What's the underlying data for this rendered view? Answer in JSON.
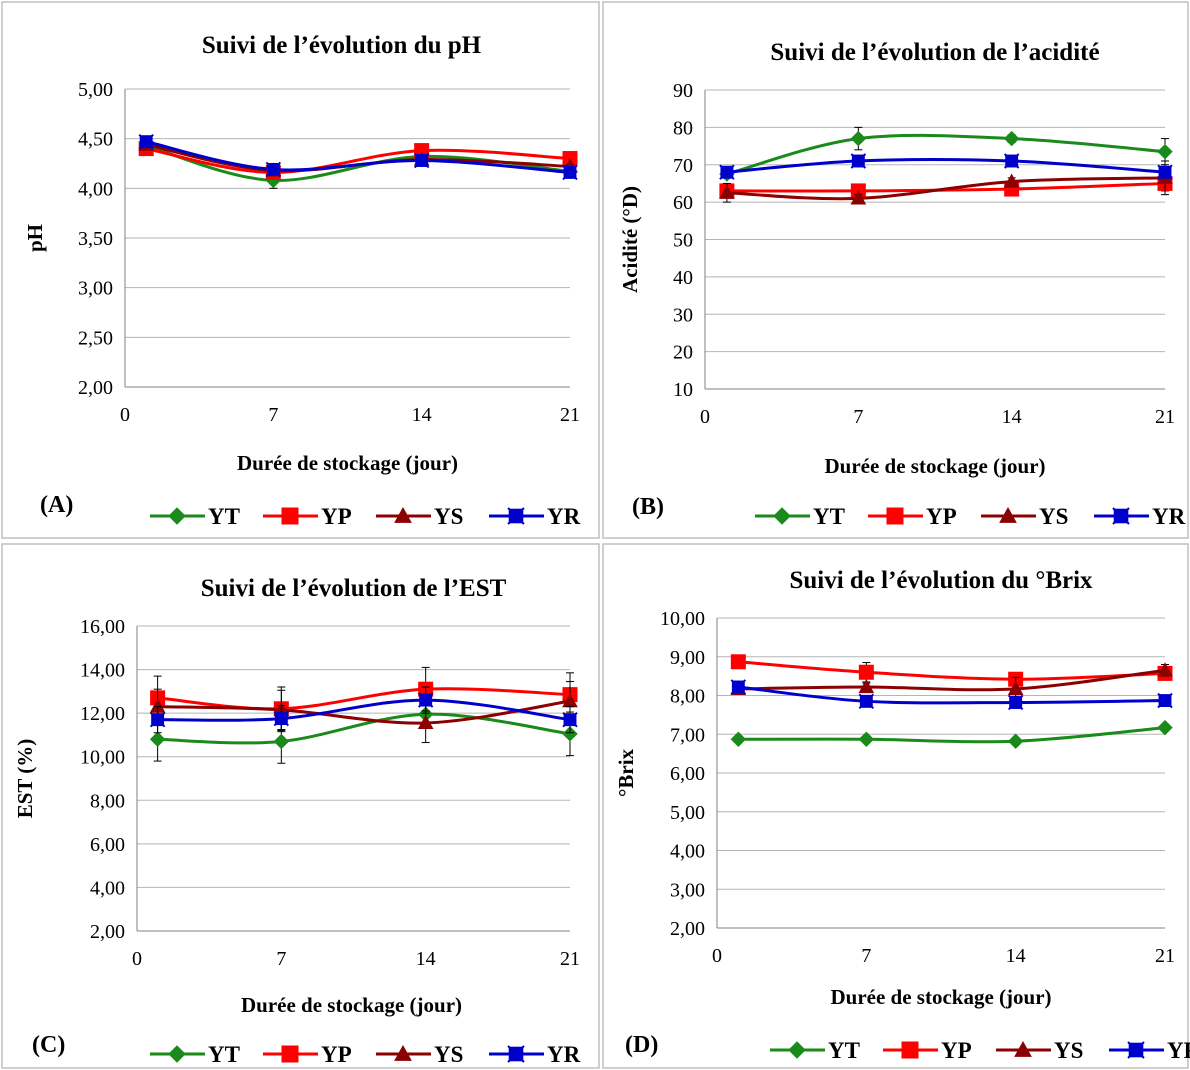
{
  "chart_data": [
    {
      "type": "line",
      "panel_label": "(A)",
      "title": "Suivi de l’évolution du pH",
      "xlabel": "Durée de stockage (jour)",
      "ylabel": "pH",
      "x_ticks": [
        "0",
        "7",
        "14",
        "21"
      ],
      "xlim": [
        0,
        21
      ],
      "y_ticks": [
        "2,00",
        "2,50",
        "3,00",
        "3,50",
        "4,00",
        "4,50",
        "5,00"
      ],
      "ylim": [
        2,
        5
      ],
      "x": [
        1,
        7,
        14,
        21
      ],
      "grid": true,
      "legend": "bottom",
      "series": [
        {
          "name": "YT",
          "color": "#1a8a1a",
          "marker": "diamond",
          "values": [
            4.43,
            4.08,
            4.32,
            4.17
          ],
          "errors": [
            0.02,
            0.08,
            0.02,
            0.02
          ]
        },
        {
          "name": "YP",
          "color": "#ff0000",
          "marker": "square",
          "values": [
            4.4,
            4.16,
            4.38,
            4.3
          ],
          "errors": [
            0.02,
            0.02,
            0.02,
            0.02
          ]
        },
        {
          "name": "YS",
          "color": "#8b0000",
          "marker": "triangle",
          "values": [
            4.44,
            4.18,
            4.29,
            4.22
          ],
          "errors": [
            0.02,
            0.02,
            0.02,
            0.02
          ]
        },
        {
          "name": "YR",
          "color": "#0000cc",
          "marker": "cross-square",
          "values": [
            4.47,
            4.19,
            4.28,
            4.16
          ],
          "errors": [
            0.02,
            0.02,
            0.02,
            0.02
          ]
        }
      ]
    },
    {
      "type": "line",
      "panel_label": "(B)",
      "title": "Suivi de l’évolution de l’acidité",
      "xlabel": "Durée de stockage (jour)",
      "ylabel": "Acidité (°D)",
      "x_ticks": [
        "0",
        "7",
        "14",
        "21"
      ],
      "xlim": [
        0,
        21
      ],
      "y_ticks": [
        "10",
        "20",
        "30",
        "40",
        "50",
        "60",
        "70",
        "80",
        "90"
      ],
      "ylim": [
        10,
        90
      ],
      "x": [
        1,
        7,
        14,
        21
      ],
      "grid": true,
      "legend": "bottom",
      "series": [
        {
          "name": "YT",
          "color": "#1a8a1a",
          "marker": "diamond",
          "values": [
            67.5,
            77,
            77,
            73.5
          ],
          "errors": [
            0.5,
            3,
            1,
            3.5
          ]
        },
        {
          "name": "YP",
          "color": "#ff0000",
          "marker": "square",
          "values": [
            63,
            63,
            63.5,
            65
          ],
          "errors": [
            1,
            1,
            1,
            2
          ]
        },
        {
          "name": "YS",
          "color": "#8b0000",
          "marker": "triangle",
          "values": [
            62.5,
            61,
            65.5,
            66.5
          ],
          "errors": [
            2.5,
            1,
            1,
            4.5
          ]
        },
        {
          "name": "YR",
          "color": "#0000cc",
          "marker": "cross-square",
          "values": [
            68,
            71,
            71,
            68
          ],
          "errors": [
            0.5,
            1,
            0.5,
            0.5
          ]
        }
      ]
    },
    {
      "type": "line",
      "panel_label": "(C)",
      "title": "Suivi de l’évolution de l’EST",
      "xlabel": "Durée de stockage (jour)",
      "ylabel": "EST (%)",
      "x_ticks": [
        "0",
        "7",
        "14",
        "21"
      ],
      "xlim": [
        0,
        21
      ],
      "y_ticks": [
        "2,00",
        "4,00",
        "6,00",
        "8,00",
        "10,00",
        "12,00",
        "14,00",
        "16,00"
      ],
      "ylim": [
        2,
        16
      ],
      "x": [
        1,
        7,
        14,
        21
      ],
      "grid": true,
      "legend": "bottom",
      "series": [
        {
          "name": "YT",
          "color": "#1a8a1a",
          "marker": "diamond",
          "values": [
            10.8,
            10.7,
            11.95,
            11.05
          ],
          "errors": [
            1.0,
            1.0,
            0.6,
            1.0
          ]
        },
        {
          "name": "YP",
          "color": "#ff0000",
          "marker": "square",
          "values": [
            12.7,
            12.2,
            13.1,
            12.85
          ],
          "errors": [
            1.0,
            1.0,
            1.0,
            1.0
          ]
        },
        {
          "name": "YS",
          "color": "#8b0000",
          "marker": "triangle",
          "values": [
            12.3,
            12.15,
            11.55,
            12.55
          ],
          "errors": [
            0.8,
            0.9,
            0.9,
            0.9
          ]
        },
        {
          "name": "YR",
          "color": "#0000cc",
          "marker": "cross-square",
          "values": [
            11.7,
            11.75,
            12.6,
            11.7
          ],
          "errors": [
            0.6,
            0.6,
            0.6,
            0.6
          ]
        }
      ]
    },
    {
      "type": "line",
      "panel_label": "(D)",
      "title": "Suivi de l’évolution du °Brix",
      "xlabel": "Durée de stockage (jour)",
      "ylabel": "°Brix",
      "x_ticks": [
        "0",
        "7",
        "14",
        "21"
      ],
      "xlim": [
        0,
        21
      ],
      "y_ticks": [
        "2,00",
        "3,00",
        "4,00",
        "5,00",
        "6,00",
        "7,00",
        "8,00",
        "9,00",
        "10,00"
      ],
      "ylim": [
        2,
        10
      ],
      "x": [
        1,
        7,
        14,
        21
      ],
      "grid": true,
      "legend": "bottom",
      "series": [
        {
          "name": "YT",
          "color": "#1a8a1a",
          "marker": "diamond",
          "values": [
            6.87,
            6.87,
            6.82,
            7.17
          ],
          "errors": [
            0.05,
            0.05,
            0.05,
            0.05
          ]
        },
        {
          "name": "YP",
          "color": "#ff0000",
          "marker": "square",
          "values": [
            8.87,
            8.6,
            8.42,
            8.57
          ],
          "errors": [
            0.1,
            0.25,
            0.1,
            0.1
          ]
        },
        {
          "name": "YS",
          "color": "#8b0000",
          "marker": "triangle",
          "values": [
            8.17,
            8.22,
            8.17,
            8.65
          ],
          "errors": [
            0.1,
            0.1,
            0.3,
            0.15
          ]
        },
        {
          "name": "YR",
          "color": "#0000cc",
          "marker": "cross-square",
          "values": [
            8.22,
            7.85,
            7.82,
            7.87
          ],
          "errors": [
            0.1,
            0.15,
            0.15,
            0.1
          ]
        }
      ]
    }
  ]
}
